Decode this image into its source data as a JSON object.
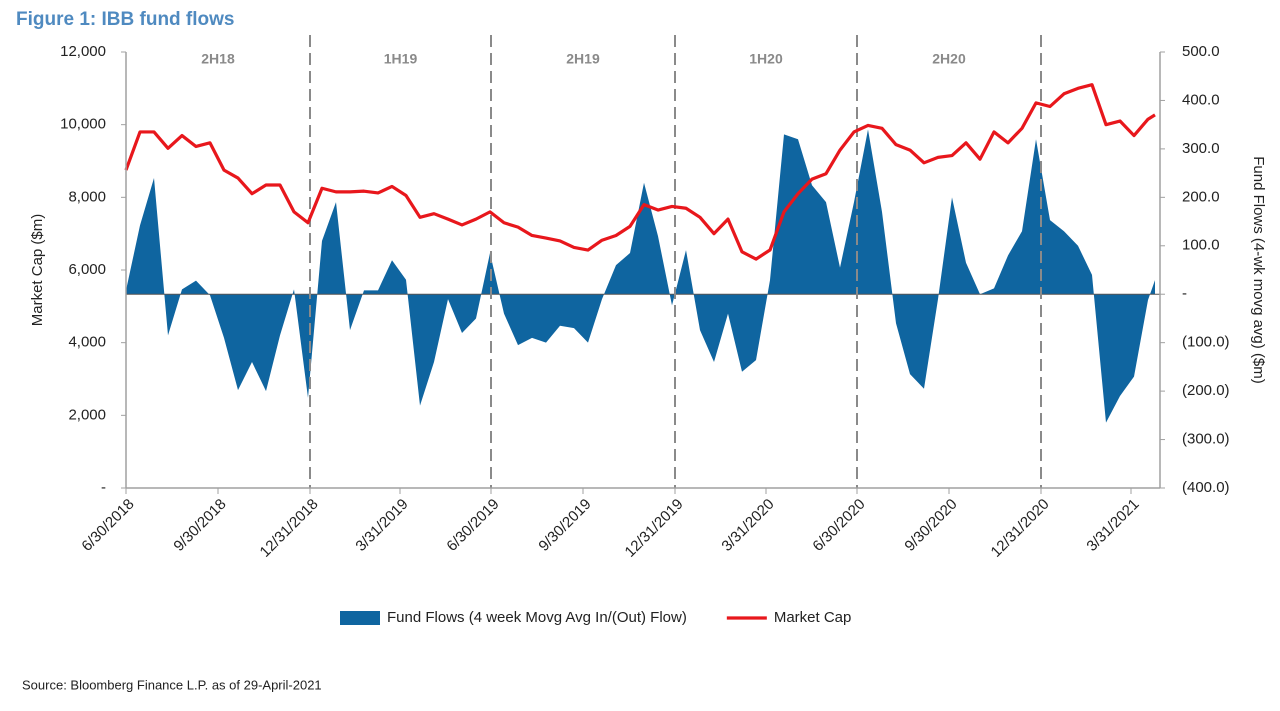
{
  "chart_data": {
    "type": "combo",
    "title": "Figure 1: IBB fund flows",
    "ylabel": "Market Cap ($m)",
    "y2label": "Fund Flows (4-wk movg avg) ($m)",
    "source": "Source: Bloomberg Finance L.P. as of 29-April-2021",
    "x": [
      "6/30/2018",
      "7/14/2018",
      "7/28/2018",
      "8/11/2018",
      "8/25/2018",
      "9/8/2018",
      "9/22/2018",
      "10/6/2018",
      "10/20/2018",
      "11/3/2018",
      "11/17/2018",
      "12/1/2018",
      "12/15/2018",
      "12/29/2018",
      "1/12/2019",
      "1/26/2019",
      "2/9/2019",
      "2/23/2019",
      "3/9/2019",
      "3/23/2019",
      "4/6/2019",
      "4/20/2019",
      "5/4/2019",
      "5/18/2019",
      "6/1/2019",
      "6/15/2019",
      "6/29/2019",
      "7/13/2019",
      "7/27/2019",
      "8/10/2019",
      "8/24/2019",
      "9/7/2019",
      "9/21/2019",
      "10/5/2019",
      "10/19/2019",
      "11/2/2019",
      "11/16/2019",
      "11/30/2019",
      "12/14/2019",
      "12/28/2019",
      "1/11/2020",
      "1/25/2020",
      "2/8/2020",
      "2/22/2020",
      "3/7/2020",
      "3/21/2020",
      "4/4/2020",
      "4/18/2020",
      "5/2/2020",
      "5/16/2020",
      "5/30/2020",
      "6/13/2020",
      "6/27/2020",
      "7/11/2020",
      "7/25/2020",
      "8/8/2020",
      "8/22/2020",
      "9/5/2020",
      "9/19/2020",
      "10/3/2020",
      "10/17/2020",
      "10/31/2020",
      "11/14/2020",
      "11/28/2020",
      "12/12/2020",
      "12/26/2020",
      "1/9/2021",
      "1/23/2021",
      "2/6/2021",
      "2/20/2021",
      "3/6/2021",
      "3/20/2021",
      "4/3/2021",
      "4/17/2021",
      "4/24/2021"
    ],
    "series": [
      {
        "name": "Fund Flows (4 week Movg Avg In/(Out) Flow)",
        "type": "area",
        "axis": "y2",
        "color": "#0f65a0",
        "values": [
          8,
          142,
          240,
          -85,
          10,
          28,
          -2,
          -90,
          -198,
          -140,
          -200,
          -85,
          10,
          -214,
          110,
          190,
          -74,
          8,
          8,
          70,
          30,
          -230,
          -140,
          -10,
          -80,
          -50,
          85,
          -40,
          -105,
          -90,
          -100,
          -65,
          -70,
          -100,
          -10,
          60,
          85,
          230,
          120,
          -23,
          91,
          -74,
          -140,
          -40,
          -160,
          -136,
          29,
          330,
          320,
          225,
          190,
          55,
          190,
          340,
          170,
          -60,
          -165,
          -195,
          -10,
          200,
          65,
          0,
          12,
          80,
          130,
          320,
          153,
          130,
          100,
          40,
          -265,
          -210,
          -170,
          -12,
          29
        ]
      },
      {
        "name": "Market Cap",
        "type": "line",
        "color": "#e8171c",
        "values": [
          8750,
          9800,
          9800,
          9350,
          9700,
          9400,
          9500,
          8750,
          8530,
          8100,
          8340,
          8340,
          7600,
          7300,
          8250,
          8150,
          8150,
          8170,
          8120,
          8300,
          8050,
          7450,
          7550,
          7400,
          7240,
          7400,
          7600,
          7300,
          7180,
          6950,
          6880,
          6800,
          6620,
          6550,
          6820,
          6950,
          7200,
          7800,
          7650,
          7750,
          7700,
          7450,
          7000,
          7400,
          6500,
          6300,
          6550,
          7600,
          8100,
          8500,
          8650,
          9300,
          9800,
          9980,
          9900,
          9450,
          9300,
          8950,
          9100,
          9150,
          9500,
          9050,
          9800,
          9500,
          9900,
          10600,
          10500,
          10850,
          11000,
          11100,
          10000,
          10100,
          9700,
          10150,
          10270
        ]
      }
    ],
    "xlim": [
      "6/30/2018",
      "4/29/2021"
    ],
    "xticks": [
      "6/30/2018",
      "9/30/2018",
      "12/31/2018",
      "3/31/2019",
      "6/30/2019",
      "9/30/2019",
      "12/31/2019",
      "3/31/2020",
      "6/30/2020",
      "9/30/2020",
      "12/31/2020",
      "3/31/2021"
    ],
    "ylim": [
      0,
      12000
    ],
    "yticks": [
      {
        "value": 0,
        "label": "-"
      },
      {
        "value": 2000,
        "label": "2,000"
      },
      {
        "value": 4000,
        "label": "4,000"
      },
      {
        "value": 6000,
        "label": "6,000"
      },
      {
        "value": 8000,
        "label": "8,000"
      },
      {
        "value": 10000,
        "label": "10,000"
      },
      {
        "value": 12000,
        "label": "12,000"
      }
    ],
    "y2lim": [
      -400,
      500
    ],
    "y2ticks": [
      {
        "value": -400,
        "label": "(400.0)"
      },
      {
        "value": -300,
        "label": "(300.0)"
      },
      {
        "value": -200,
        "label": "(200.0)"
      },
      {
        "value": -100,
        "label": "(100.0)"
      },
      {
        "value": 0,
        "label": "-"
      },
      {
        "value": 100,
        "label": "100.0"
      },
      {
        "value": 200,
        "label": "200.0"
      },
      {
        "value": 300,
        "label": "300.0"
      },
      {
        "value": 400,
        "label": "400.0"
      },
      {
        "value": 500,
        "label": "500.0"
      }
    ],
    "dividers": [
      "12/31/2018",
      "6/30/2019",
      "12/31/2019",
      "6/30/2020",
      "12/31/2020"
    ],
    "periods": [
      "2H18",
      "1H19",
      "2H19",
      "1H20",
      "2H20"
    ],
    "legend": "bottom"
  }
}
